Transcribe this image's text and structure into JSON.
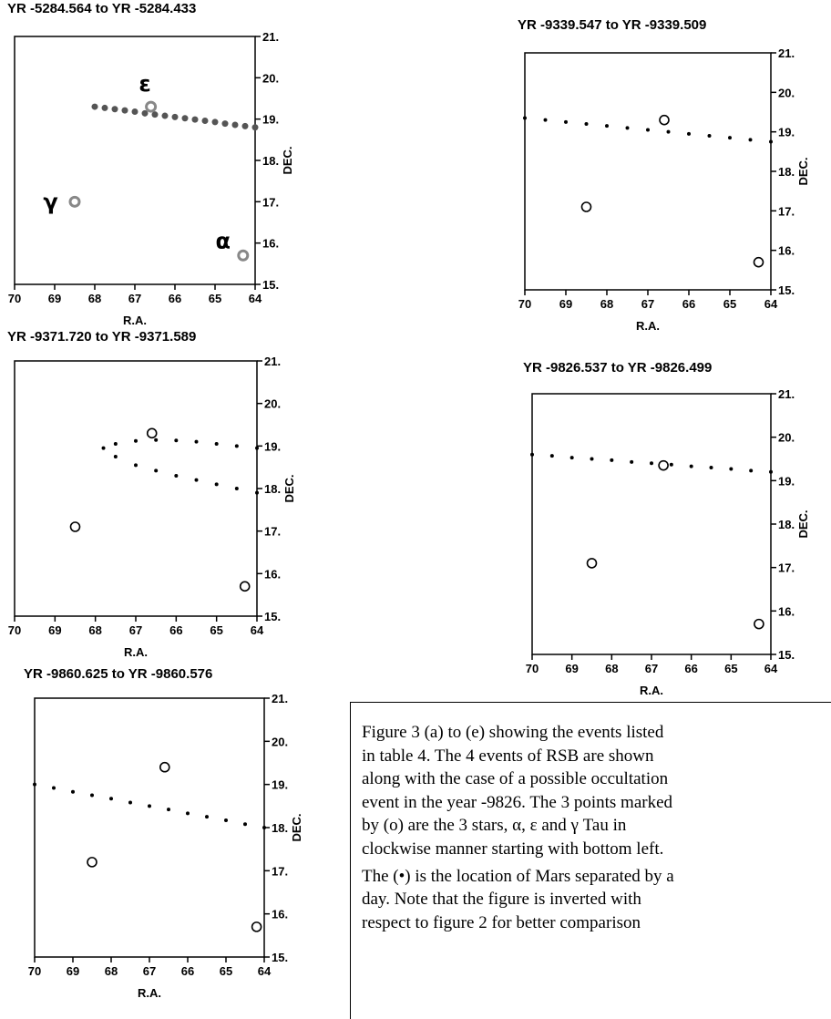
{
  "chart_data": [
    {
      "type": "scatter",
      "title": "YR -5284.564 to YR -5284.433",
      "xlabel": "R.A.",
      "ylabel": "DEC.",
      "xlim": [
        70,
        64
      ],
      "ylim": [
        15,
        21
      ],
      "xticks": [
        70,
        69,
        68,
        67,
        66,
        65,
        64
      ],
      "yticks": [
        {
          "value": 15,
          "label": "15."
        },
        {
          "value": 16,
          "label": "16."
        },
        {
          "value": 17,
          "label": "17."
        },
        {
          "value": 18,
          "label": "18."
        },
        {
          "value": 19,
          "label": "19."
        },
        {
          "value": 20,
          "label": "20."
        },
        {
          "value": 21,
          "label": "21."
        }
      ],
      "grid": false,
      "series": [
        {
          "color": "#555555",
          "marker": "dot",
          "x": [
            68.0,
            67.75,
            67.5,
            67.25,
            67.0,
            66.75,
            66.5,
            66.25,
            66.0,
            65.75,
            65.5,
            65.25,
            65.0,
            64.75,
            64.5,
            64.25,
            64.0
          ],
          "y": [
            19.3,
            19.27,
            19.24,
            19.21,
            19.18,
            19.14,
            19.11,
            19.08,
            19.05,
            19.02,
            18.99,
            18.96,
            18.93,
            18.89,
            18.86,
            18.83,
            18.8
          ]
        },
        {
          "color": "#888888",
          "marker": "ring",
          "x": [
            68.5,
            66.6,
            64.3
          ],
          "y": [
            17.0,
            19.3,
            15.7
          ]
        }
      ],
      "annotations": [
        {
          "text": "ε",
          "x": 66.75,
          "y": 19.85
        },
        {
          "text": "γ",
          "x": 69.1,
          "y": 17.0
        },
        {
          "text": "α",
          "x": 64.8,
          "y": 16.05
        }
      ]
    },
    {
      "type": "scatter",
      "title": "YR -9339.547 to YR -9339.509",
      "xlabel": "R.A.",
      "ylabel": "DEC.",
      "xlim": [
        70,
        64
      ],
      "ylim": [
        15,
        21
      ],
      "xticks": [
        70,
        69,
        68,
        67,
        66,
        65,
        64
      ],
      "yticks": [
        {
          "value": 15,
          "label": "15."
        },
        {
          "value": 16,
          "label": "16."
        },
        {
          "value": 17,
          "label": "17."
        },
        {
          "value": 18,
          "label": "18."
        },
        {
          "value": 19,
          "label": "19."
        },
        {
          "value": 20,
          "label": "20."
        },
        {
          "value": 21,
          "label": "21."
        }
      ],
      "grid": false,
      "series": [
        {
          "color": "#000000",
          "marker": "dot",
          "x": [
            70,
            69.5,
            69,
            68.5,
            68,
            67.5,
            67,
            66.5,
            66,
            65.5,
            65,
            64.5,
            64
          ],
          "y": [
            19.35,
            19.3,
            19.25,
            19.2,
            19.15,
            19.1,
            19.05,
            19.0,
            18.95,
            18.9,
            18.85,
            18.8,
            18.75
          ]
        },
        {
          "color": "#000000",
          "marker": "ring",
          "x": [
            68.5,
            66.6,
            64.3
          ],
          "y": [
            17.1,
            19.3,
            15.7
          ]
        }
      ]
    },
    {
      "type": "scatter",
      "title": "YR -9371.720 to YR -9371.589",
      "xlabel": "R.A.",
      "ylabel": "DEC.",
      "xlim": [
        70,
        64
      ],
      "ylim": [
        15,
        21
      ],
      "xticks": [
        70,
        69,
        68,
        67,
        66,
        65,
        64
      ],
      "yticks": [
        {
          "value": 15,
          "label": "15."
        },
        {
          "value": 16,
          "label": "16."
        },
        {
          "value": 17,
          "label": "17."
        },
        {
          "value": 18,
          "label": "18."
        },
        {
          "value": 19,
          "label": "19."
        },
        {
          "value": 20,
          "label": "20."
        },
        {
          "value": 21,
          "label": "21."
        }
      ],
      "grid": false,
      "series": [
        {
          "color": "#000000",
          "marker": "dot",
          "x": [
            64.0,
            64.5,
            65.0,
            65.5,
            66.0,
            66.5,
            67.0,
            67.5,
            67.8,
            67.5,
            67.0,
            66.5,
            66.0,
            65.5,
            65.0,
            64.5,
            64.0
          ],
          "y": [
            18.95,
            19.0,
            19.05,
            19.1,
            19.13,
            19.14,
            19.12,
            19.05,
            18.95,
            18.75,
            18.55,
            18.42,
            18.3,
            18.2,
            18.1,
            18.0,
            17.9
          ]
        },
        {
          "color": "#000000",
          "marker": "ring",
          "x": [
            68.5,
            66.6,
            64.3
          ],
          "y": [
            17.1,
            19.3,
            15.7
          ]
        }
      ]
    },
    {
      "type": "scatter",
      "title": "YR -9826.537 to YR -9826.499",
      "xlabel": "R.A.",
      "ylabel": "DEC.",
      "xlim": [
        70,
        64
      ],
      "ylim": [
        15,
        21
      ],
      "xticks": [
        70,
        69,
        68,
        67,
        66,
        65,
        64
      ],
      "yticks": [
        {
          "value": 15,
          "label": "15."
        },
        {
          "value": 16,
          "label": "16."
        },
        {
          "value": 17,
          "label": "17."
        },
        {
          "value": 18,
          "label": "18."
        },
        {
          "value": 19,
          "label": "19."
        },
        {
          "value": 20,
          "label": "20."
        },
        {
          "value": 21,
          "label": "21."
        }
      ],
      "grid": false,
      "series": [
        {
          "color": "#000000",
          "marker": "dot",
          "x": [
            70,
            69.5,
            69,
            68.5,
            68,
            67.5,
            67,
            66.5,
            66,
            65.5,
            65,
            64.5,
            64
          ],
          "y": [
            19.6,
            19.57,
            19.53,
            19.5,
            19.47,
            19.43,
            19.4,
            19.37,
            19.33,
            19.3,
            19.27,
            19.23,
            19.2
          ]
        },
        {
          "color": "#000000",
          "marker": "ring",
          "x": [
            68.5,
            66.7,
            64.3
          ],
          "y": [
            17.1,
            19.35,
            15.7
          ]
        }
      ]
    },
    {
      "type": "scatter",
      "title": "YR -9860.625 to YR -9860.576",
      "xlabel": "R.A.",
      "ylabel": "DEC.",
      "xlim": [
        70,
        64
      ],
      "ylim": [
        15,
        21
      ],
      "xticks": [
        70,
        69,
        68,
        67,
        66,
        65,
        64
      ],
      "yticks": [
        {
          "value": 15,
          "label": "15."
        },
        {
          "value": 16,
          "label": "16."
        },
        {
          "value": 17,
          "label": "17."
        },
        {
          "value": 18,
          "label": "18."
        },
        {
          "value": 19,
          "label": "19."
        },
        {
          "value": 20,
          "label": "20."
        },
        {
          "value": 21,
          "label": "21."
        }
      ],
      "grid": false,
      "series": [
        {
          "color": "#000000",
          "marker": "dot",
          "x": [
            70,
            69.5,
            69,
            68.5,
            68,
            67.5,
            67,
            66.5,
            66,
            65.5,
            65,
            64.5,
            64
          ],
          "y": [
            19.0,
            18.92,
            18.83,
            18.75,
            18.67,
            18.58,
            18.5,
            18.42,
            18.33,
            18.25,
            18.17,
            18.08,
            18.0
          ]
        },
        {
          "color": "#000000",
          "marker": "ring",
          "x": [
            68.5,
            66.6,
            64.2
          ],
          "y": [
            17.2,
            19.4,
            15.7
          ]
        }
      ]
    }
  ],
  "caption": {
    "lines": [
      "Figure 3 (a) to (e) showing the events listed",
      "in table 4. The 4 events of RSB are shown",
      "along with the case of a possible occultation",
      "event in the year -9826. The 3 points marked",
      "by (o) are the 3 stars, α, ε and γ Tau in",
      "clockwise manner starting with bottom left.",
      "The (•) is the location of Mars separated by a",
      "day. Note that the figure is inverted with",
      "respect to figure 2 for better comparison"
    ]
  }
}
